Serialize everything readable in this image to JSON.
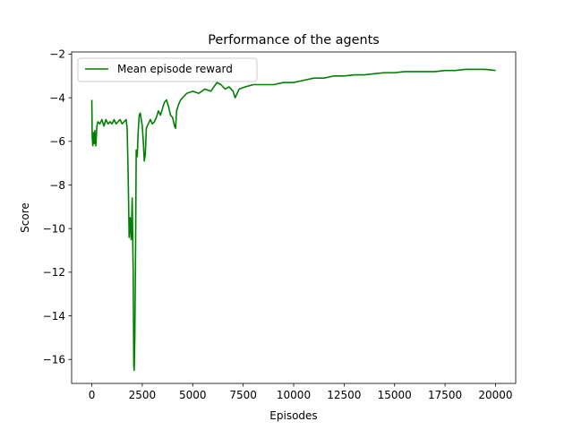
{
  "chart_data": {
    "type": "line",
    "title": "Performance of the agents",
    "xlabel": "Episodes",
    "ylabel": "Score",
    "xlim": [
      -1000,
      21000
    ],
    "ylim": [
      -17.1,
      -1.9
    ],
    "xticks": [
      0,
      2500,
      5000,
      7500,
      10000,
      12500,
      15000,
      17500,
      20000
    ],
    "yticks": [
      -16,
      -14,
      -12,
      -10,
      -8,
      -6,
      -4,
      -2
    ],
    "grid": false,
    "legend_position": "top-left",
    "series": [
      {
        "name": "Mean episode reward",
        "color": "#008000",
        "x": [
          0,
          20,
          50,
          80,
          120,
          150,
          200,
          250,
          300,
          400,
          500,
          600,
          700,
          800,
          900,
          1000,
          1100,
          1200,
          1300,
          1400,
          1500,
          1600,
          1700,
          1750,
          1800,
          1850,
          1900,
          1950,
          2000,
          2050,
          2080,
          2100,
          2130,
          2160,
          2200,
          2250,
          2300,
          2350,
          2400,
          2450,
          2500,
          2550,
          2600,
          2650,
          2700,
          2800,
          2900,
          3000,
          3100,
          3200,
          3300,
          3400,
          3500,
          3600,
          3700,
          3800,
          3900,
          4000,
          4100,
          4150,
          4200,
          4300,
          4400,
          4500,
          4700,
          5000,
          5300,
          5600,
          5900,
          6200,
          6400,
          6600,
          6800,
          7000,
          7100,
          7300,
          7600,
          8000,
          8500,
          9000,
          9500,
          10000,
          10500,
          11000,
          11500,
          12000,
          12500,
          13000,
          13500,
          14000,
          14500,
          15000,
          15500,
          16000,
          16500,
          17000,
          17500,
          18000,
          18500,
          19000,
          19500,
          20000
        ],
        "values": [
          -4.1,
          -5.8,
          -6.2,
          -5.6,
          -6.1,
          -5.5,
          -6.2,
          -5.3,
          -5.1,
          -5.2,
          -5.0,
          -5.3,
          -5.0,
          -5.2,
          -5.1,
          -5.2,
          -5.0,
          -5.2,
          -5.1,
          -5.0,
          -5.2,
          -5.1,
          -5.0,
          -5.4,
          -7.5,
          -10.4,
          -9.5,
          -10.5,
          -8.6,
          -12.0,
          -16.3,
          -16.5,
          -15.0,
          -12.0,
          -6.4,
          -6.7,
          -5.5,
          -4.8,
          -4.7,
          -5.0,
          -5.3,
          -6.0,
          -6.9,
          -6.6,
          -5.4,
          -5.2,
          -5.0,
          -5.2,
          -5.1,
          -4.9,
          -4.6,
          -4.8,
          -4.5,
          -4.2,
          -4.1,
          -4.4,
          -4.8,
          -4.9,
          -5.3,
          -5.4,
          -4.6,
          -4.3,
          -4.1,
          -4.0,
          -3.8,
          -3.7,
          -3.8,
          -3.6,
          -3.7,
          -3.3,
          -3.4,
          -3.6,
          -3.5,
          -3.7,
          -4.0,
          -3.6,
          -3.5,
          -3.4,
          -3.4,
          -3.4,
          -3.3,
          -3.3,
          -3.2,
          -3.1,
          -3.1,
          -3.0,
          -3.0,
          -2.95,
          -2.95,
          -2.9,
          -2.85,
          -2.85,
          -2.8,
          -2.8,
          -2.8,
          -2.8,
          -2.75,
          -2.75,
          -2.7,
          -2.7,
          -2.7,
          -2.75
        ]
      }
    ]
  }
}
